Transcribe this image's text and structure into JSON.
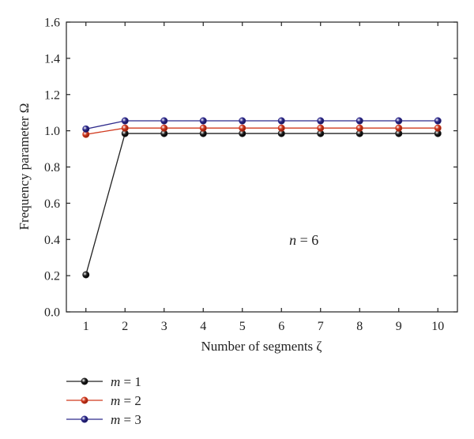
{
  "chart_data": {
    "type": "line",
    "title": "",
    "xlabel": "Number of segments ζ",
    "ylabel": "Frequency parameter Ω",
    "x": [
      1,
      2,
      3,
      4,
      5,
      6,
      7,
      8,
      9,
      10
    ],
    "xticks": [
      "1",
      "2",
      "3",
      "4",
      "5",
      "6",
      "7",
      "8",
      "9",
      "10"
    ],
    "xlim": [
      0.5,
      10.5
    ],
    "ylim": [
      0,
      1.6
    ],
    "yticks": [
      "0.0",
      "0.2",
      "0.4",
      "0.6",
      "0.8",
      "1.0",
      "1.2",
      "1.4",
      "1.6"
    ],
    "grid": false,
    "legend_position": "bottom-left, below plot",
    "annotation": {
      "var": "n",
      "eq": " = 6",
      "x": 6.2,
      "y": 0.37
    },
    "series": [
      {
        "name": "m = 1",
        "var": "m",
        "eq": " = 1",
        "color": "#222222",
        "values": [
          0.205,
          0.985,
          0.985,
          0.985,
          0.985,
          0.985,
          0.985,
          0.985,
          0.985,
          0.985
        ]
      },
      {
        "name": "m = 2",
        "var": "m",
        "eq": " = 2",
        "color": "#d13a1f",
        "values": [
          0.98,
          1.015,
          1.015,
          1.015,
          1.015,
          1.015,
          1.015,
          1.015,
          1.015,
          1.015
        ]
      },
      {
        "name": "m = 3",
        "var": "m",
        "eq": " = 3",
        "color": "#2e2a8c",
        "values": [
          1.01,
          1.055,
          1.055,
          1.055,
          1.055,
          1.055,
          1.055,
          1.055,
          1.055,
          1.055
        ]
      }
    ]
  }
}
